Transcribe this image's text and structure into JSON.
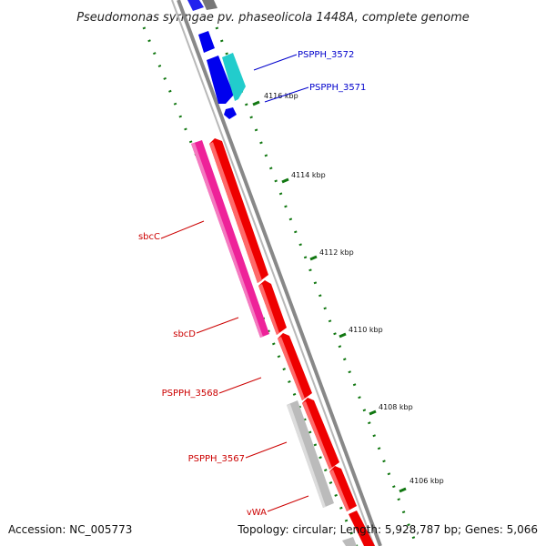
{
  "title": "Pseudomonas syringae pv. phaseolicola 1448A, complete genome",
  "footer": {
    "accession": "Accession: NC_005773",
    "summary": "Topology: circular; Length: 5,928,787 bp; Genes: 5,066"
  },
  "scale_labels": [
    "4116 kbp",
    "4114 kbp",
    "4112 kbp",
    "4110 kbp",
    "4108 kbp",
    "4106 kbp"
  ],
  "gene_labels": [
    {
      "text": "PSPPH_3572",
      "color": "#0000cc"
    },
    {
      "text": "PSPPH_3571",
      "color": "#0000cc"
    },
    {
      "text": "sbcC",
      "color": "#cc0000"
    },
    {
      "text": "sbcD",
      "color": "#cc0000"
    },
    {
      "text": "PSPPH_3568",
      "color": "#cc0000"
    },
    {
      "text": "PSPPH_3567",
      "color": "#cc0000"
    },
    {
      "text": "vWA",
      "color": "#cc0000"
    }
  ],
  "colors": {
    "backbone": "#888888",
    "forward_genes": "#ee0000",
    "reverse_genes_blue": "#0000ee",
    "cyan_gene": "#22cccc",
    "magenta_gene": "#ee2299",
    "grey_gene": "#bbbbbb",
    "ticks": "#117711"
  }
}
